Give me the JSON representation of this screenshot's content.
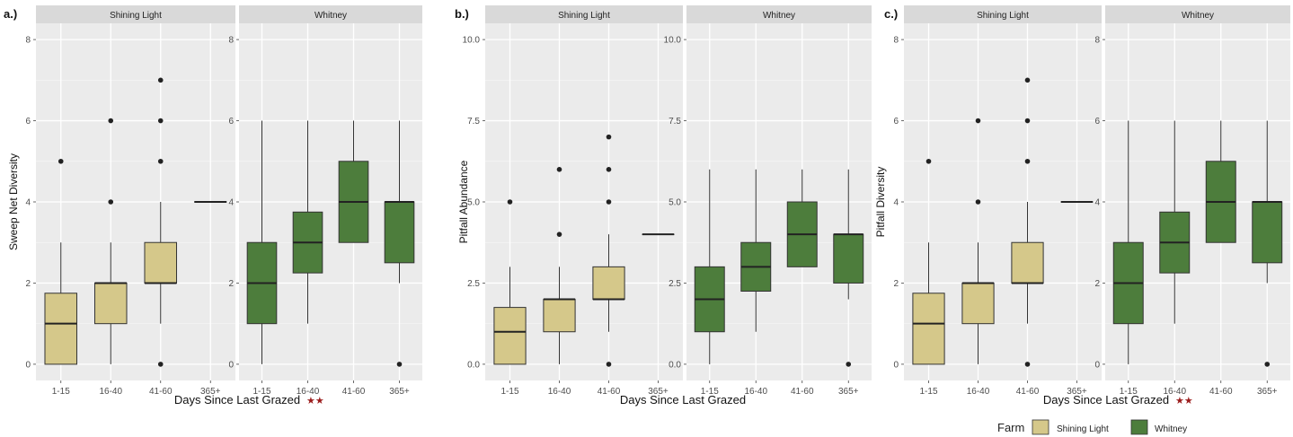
{
  "figure": {
    "colors": {
      "shining_light": "#d5c88a",
      "whitney": "#4d7d3c",
      "panel_bg": "#ebebeb",
      "strip_bg": "#d9d9d9",
      "star": "#9b1c1c"
    }
  },
  "legend": {
    "title": "Farm",
    "entries": [
      "Shining Light",
      "Whitney"
    ]
  },
  "chart_data": [
    {
      "type": "box",
      "tag": "a.)",
      "ylabel": "Sweep Net Diversity",
      "xlabel": "Days Since Last Grazed",
      "significance": "★★",
      "categories": [
        "1-15",
        "16-40",
        "41-60",
        "365+"
      ],
      "ylim": [
        -0.4,
        8.4
      ],
      "yticks": [
        0,
        2,
        4,
        6,
        8
      ],
      "ytick_labels": [
        "0",
        "2",
        "4",
        "6",
        "8"
      ],
      "facets": [
        {
          "name": "Shining Light",
          "series": "shining_light",
          "boxes": [
            {
              "category": "1-15",
              "low": 0,
              "q1": 0,
              "median": 1,
              "q3": 1.75,
              "high": 3,
              "outliers": [
                5
              ]
            },
            {
              "category": "16-40",
              "low": 0,
              "q1": 1,
              "median": 2,
              "q3": 2,
              "high": 3,
              "outliers": [
                4,
                6
              ]
            },
            {
              "category": "41-60",
              "low": 1,
              "q1": 2,
              "median": 2,
              "q3": 3,
              "high": 4,
              "outliers": [
                0,
                5,
                6,
                7
              ]
            },
            {
              "category": "365+",
              "low": 4,
              "q1": 4,
              "median": 4,
              "q3": 4,
              "high": 4,
              "outliers": []
            }
          ]
        },
        {
          "name": "Whitney",
          "series": "whitney",
          "boxes": [
            {
              "category": "1-15",
              "low": 0,
              "q1": 1,
              "median": 2,
              "q3": 3,
              "high": 6,
              "outliers": []
            },
            {
              "category": "16-40",
              "low": 1,
              "q1": 2.25,
              "median": 3,
              "q3": 3.75,
              "high": 6,
              "outliers": []
            },
            {
              "category": "41-60",
              "low": 3,
              "q1": 3,
              "median": 4,
              "q3": 5,
              "high": 6,
              "outliers": []
            },
            {
              "category": "365+",
              "low": 2,
              "q1": 2.5,
              "median": 4,
              "q3": 4,
              "high": 6,
              "outliers": [
                0
              ]
            }
          ]
        }
      ]
    },
    {
      "type": "box",
      "tag": "b.)",
      "ylabel": "Pitfall Abundance",
      "xlabel": "Days Since Last Grazed",
      "significance": "",
      "categories": [
        "1-15",
        "16-40",
        "41-60",
        "365+"
      ],
      "ylim": [
        -0.5,
        10.5
      ],
      "yticks": [
        0,
        2.5,
        5,
        7.5,
        10
      ],
      "ytick_labels": [
        "0.0",
        "2.5",
        "5.0",
        "7.5",
        "10.0"
      ],
      "facets": [
        {
          "name": "Shining Light",
          "series": "shining_light",
          "boxes": [
            {
              "category": "1-15",
              "low": 0,
              "q1": 0,
              "median": 1,
              "q3": 1.75,
              "high": 3,
              "outliers": [
                5
              ]
            },
            {
              "category": "16-40",
              "low": 0,
              "q1": 1,
              "median": 2,
              "q3": 2,
              "high": 3,
              "outliers": [
                4,
                6
              ]
            },
            {
              "category": "41-60",
              "low": 1,
              "q1": 2,
              "median": 2,
              "q3": 3,
              "high": 4,
              "outliers": [
                0,
                5,
                6,
                7
              ]
            },
            {
              "category": "365+",
              "low": 4,
              "q1": 4,
              "median": 4,
              "q3": 4,
              "high": 4,
              "outliers": []
            }
          ]
        },
        {
          "name": "Whitney",
          "series": "whitney",
          "boxes": [
            {
              "category": "1-15",
              "low": 0,
              "q1": 1,
              "median": 2,
              "q3": 3,
              "high": 6,
              "outliers": []
            },
            {
              "category": "16-40",
              "low": 1,
              "q1": 2.25,
              "median": 3,
              "q3": 3.75,
              "high": 6,
              "outliers": []
            },
            {
              "category": "41-60",
              "low": 3,
              "q1": 3,
              "median": 4,
              "q3": 5,
              "high": 6,
              "outliers": []
            },
            {
              "category": "365+",
              "low": 2,
              "q1": 2.5,
              "median": 4,
              "q3": 4,
              "high": 6,
              "outliers": [
                0
              ]
            }
          ]
        }
      ]
    },
    {
      "type": "box",
      "tag": "c.)",
      "ylabel": "Pitfall Diversity",
      "xlabel": "Days Since Last Grazed",
      "significance": "★★",
      "categories": [
        "1-15",
        "16-40",
        "41-60",
        "365+"
      ],
      "ylim": [
        -0.4,
        8.4
      ],
      "yticks": [
        0,
        2,
        4,
        6,
        8
      ],
      "ytick_labels": [
        "0",
        "2",
        "4",
        "6",
        "8"
      ],
      "facets": [
        {
          "name": "Shining Light",
          "series": "shining_light",
          "boxes": [
            {
              "category": "1-15",
              "low": 0,
              "q1": 0,
              "median": 1,
              "q3": 1.75,
              "high": 3,
              "outliers": [
                5
              ]
            },
            {
              "category": "16-40",
              "low": 0,
              "q1": 1,
              "median": 2,
              "q3": 2,
              "high": 3,
              "outliers": [
                4,
                6
              ]
            },
            {
              "category": "41-60",
              "low": 1,
              "q1": 2,
              "median": 2,
              "q3": 3,
              "high": 4,
              "outliers": [
                0,
                5,
                6,
                7
              ]
            },
            {
              "category": "365+",
              "low": 4,
              "q1": 4,
              "median": 4,
              "q3": 4,
              "high": 4,
              "outliers": []
            }
          ]
        },
        {
          "name": "Whitney",
          "series": "whitney",
          "boxes": [
            {
              "category": "1-15",
              "low": 0,
              "q1": 1,
              "median": 2,
              "q3": 3,
              "high": 6,
              "outliers": []
            },
            {
              "category": "16-40",
              "low": 1,
              "q1": 2.25,
              "median": 3,
              "q3": 3.75,
              "high": 6,
              "outliers": []
            },
            {
              "category": "41-60",
              "low": 3,
              "q1": 3,
              "median": 4,
              "q3": 5,
              "high": 6,
              "outliers": []
            },
            {
              "category": "365+",
              "low": 2,
              "q1": 2.5,
              "median": 4,
              "q3": 4,
              "high": 6,
              "outliers": [
                0
              ]
            }
          ]
        }
      ]
    }
  ]
}
